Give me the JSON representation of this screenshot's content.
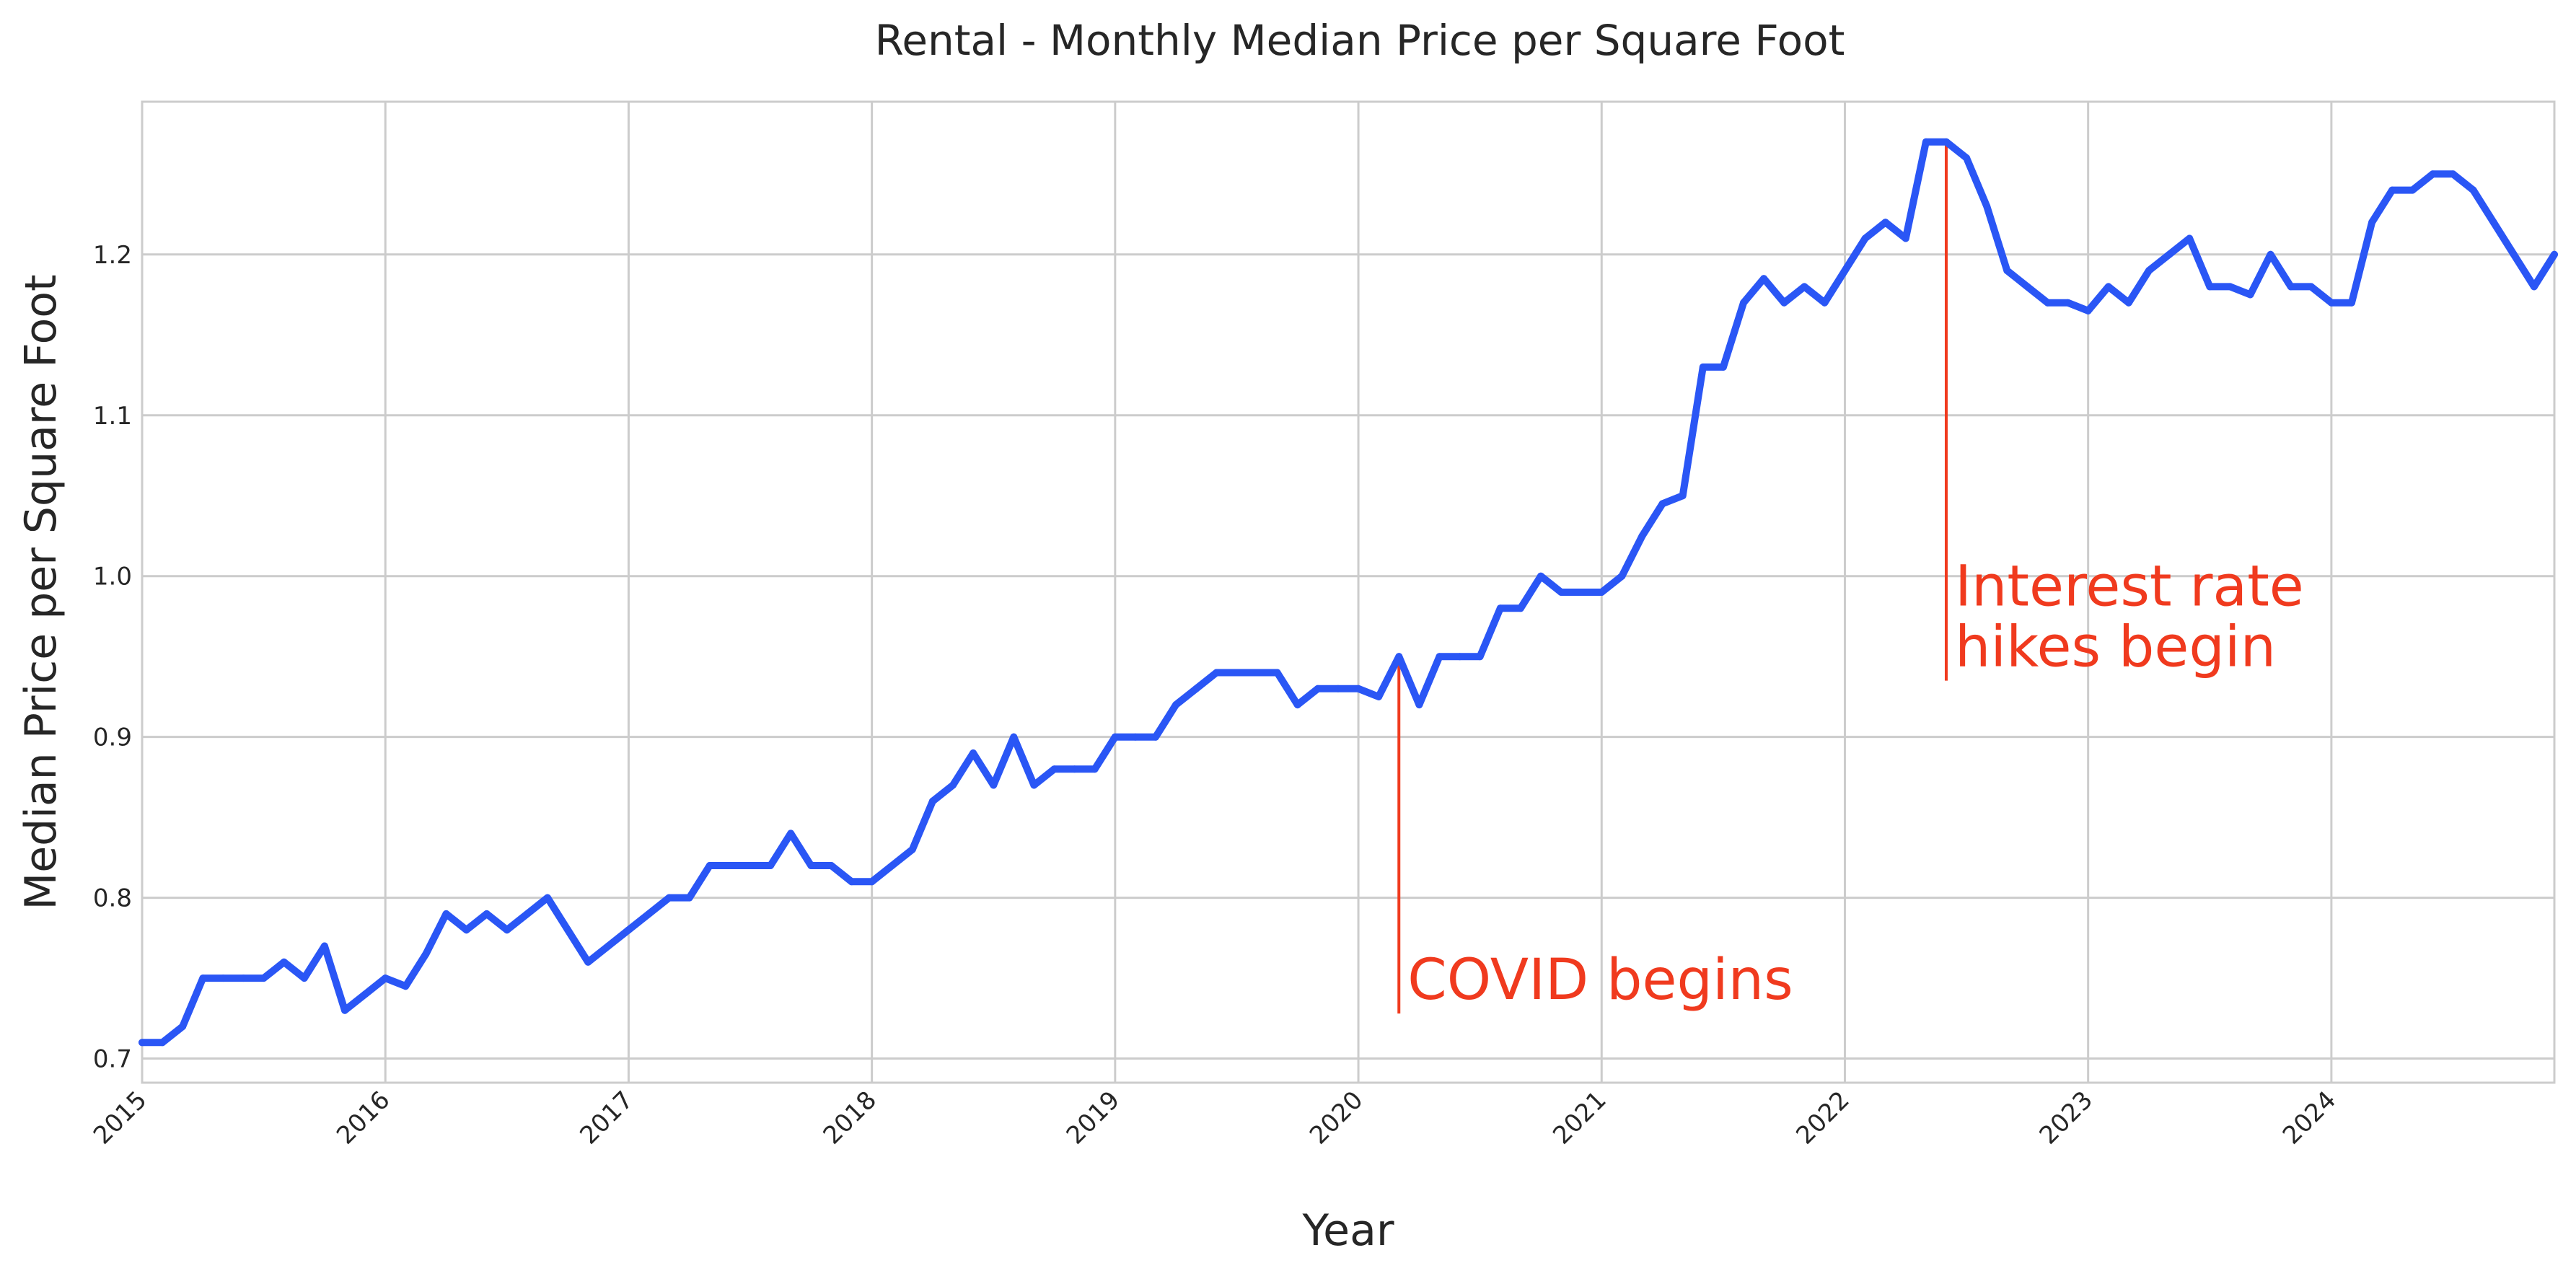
{
  "chart_data": {
    "type": "line",
    "title": "Rental - Monthly Median Price per Square Foot",
    "xlabel": "Year",
    "ylabel": "Median Price per Square Foot",
    "xlim": [
      "2015-01",
      "2024-12"
    ],
    "ylim": [
      0.685,
      1.295
    ],
    "yticks": [
      0.7,
      0.8,
      0.9,
      1.0,
      1.1,
      1.2
    ],
    "ytick_labels": [
      "0.7",
      "0.8",
      "0.9",
      "1.0",
      "1.1",
      "1.2"
    ],
    "xticks": [
      "2015-01",
      "2016-01",
      "2017-01",
      "2018-01",
      "2019-01",
      "2020-01",
      "2021-01",
      "2022-01",
      "2023-01",
      "2024-01"
    ],
    "xtick_labels": [
      "2015",
      "2016",
      "2017",
      "2018",
      "2019",
      "2020",
      "2021",
      "2022",
      "2023",
      "2024"
    ],
    "grid": true,
    "legend": "none",
    "colors": {
      "series": "#2a56f5",
      "annotation": "#f03a1e"
    },
    "series": [
      {
        "x": [
          "2015-01",
          "2015-02",
          "2015-03",
          "2015-04",
          "2015-05",
          "2015-06",
          "2015-07",
          "2015-08",
          "2015-09",
          "2015-10",
          "2015-11",
          "2015-12",
          "2016-01",
          "2016-02",
          "2016-03",
          "2016-04",
          "2016-05",
          "2016-06",
          "2016-07",
          "2016-08",
          "2016-09",
          "2016-10",
          "2016-11",
          "2016-12",
          "2017-01",
          "2017-02",
          "2017-03",
          "2017-04",
          "2017-05",
          "2017-06",
          "2017-07",
          "2017-08",
          "2017-09",
          "2017-10",
          "2017-11",
          "2017-12",
          "2018-01",
          "2018-02",
          "2018-03",
          "2018-04",
          "2018-05",
          "2018-06",
          "2018-07",
          "2018-08",
          "2018-09",
          "2018-10",
          "2018-11",
          "2018-12",
          "2019-01",
          "2019-02",
          "2019-03",
          "2019-04",
          "2019-05",
          "2019-06",
          "2019-07",
          "2019-08",
          "2019-09",
          "2019-10",
          "2019-11",
          "2019-12",
          "2020-01",
          "2020-02",
          "2020-03",
          "2020-04",
          "2020-05",
          "2020-06",
          "2020-07",
          "2020-08",
          "2020-09",
          "2020-10",
          "2020-11",
          "2020-12",
          "2021-01",
          "2021-02",
          "2021-03",
          "2021-04",
          "2021-05",
          "2021-06",
          "2021-07",
          "2021-08",
          "2021-09",
          "2021-10",
          "2021-11",
          "2021-12",
          "2022-01",
          "2022-02",
          "2022-03",
          "2022-04",
          "2022-05",
          "2022-06",
          "2022-07",
          "2022-08",
          "2022-09",
          "2022-10",
          "2022-11",
          "2022-12",
          "2023-01",
          "2023-02",
          "2023-03",
          "2023-04",
          "2023-05",
          "2023-06",
          "2023-07",
          "2023-08",
          "2023-09",
          "2023-10",
          "2023-11",
          "2023-12",
          "2024-01",
          "2024-02",
          "2024-03",
          "2024-04",
          "2024-05",
          "2024-06",
          "2024-07",
          "2024-08",
          "2024-09",
          "2024-10",
          "2024-11",
          "2024-12"
        ],
        "y": [
          0.71,
          0.71,
          0.72,
          0.75,
          0.75,
          0.75,
          0.75,
          0.76,
          0.75,
          0.77,
          0.73,
          0.74,
          0.75,
          0.745,
          0.765,
          0.79,
          0.78,
          0.79,
          0.78,
          0.79,
          0.8,
          0.78,
          0.76,
          0.77,
          0.78,
          0.79,
          0.8,
          0.8,
          0.82,
          0.82,
          0.82,
          0.82,
          0.84,
          0.82,
          0.82,
          0.81,
          0.81,
          0.82,
          0.83,
          0.86,
          0.87,
          0.89,
          0.87,
          0.9,
          0.87,
          0.88,
          0.88,
          0.88,
          0.9,
          0.9,
          0.9,
          0.92,
          0.93,
          0.94,
          0.94,
          0.94,
          0.94,
          0.92,
          0.93,
          0.93,
          0.93,
          0.925,
          0.95,
          0.92,
          0.95,
          0.95,
          0.95,
          0.98,
          0.98,
          1.0,
          0.99,
          0.99,
          0.99,
          1.0,
          1.025,
          1.045,
          1.05,
          1.13,
          1.13,
          1.17,
          1.185,
          1.17,
          1.18,
          1.17,
          1.19,
          1.21,
          1.22,
          1.21,
          1.27,
          1.27,
          1.26,
          1.23,
          1.19,
          1.18,
          1.17,
          1.17,
          1.165,
          1.18,
          1.17,
          1.19,
          1.2,
          1.21,
          1.18,
          1.18,
          1.175,
          1.2,
          1.18,
          1.18,
          1.17,
          1.17,
          1.22,
          1.24,
          1.24,
          1.25,
          1.25,
          1.24,
          1.22,
          1.2,
          1.18,
          1.2
        ]
      }
    ],
    "annotations": [
      {
        "text_lines": [
          "COVID begins"
        ],
        "x": "2020-03",
        "y_from": 0.728,
        "y_to": 0.952
      },
      {
        "text_lines": [
          "Interest rate",
          "hikes begin"
        ],
        "x": "2022-06",
        "y_from": 0.935,
        "y_to": 1.27
      }
    ]
  }
}
